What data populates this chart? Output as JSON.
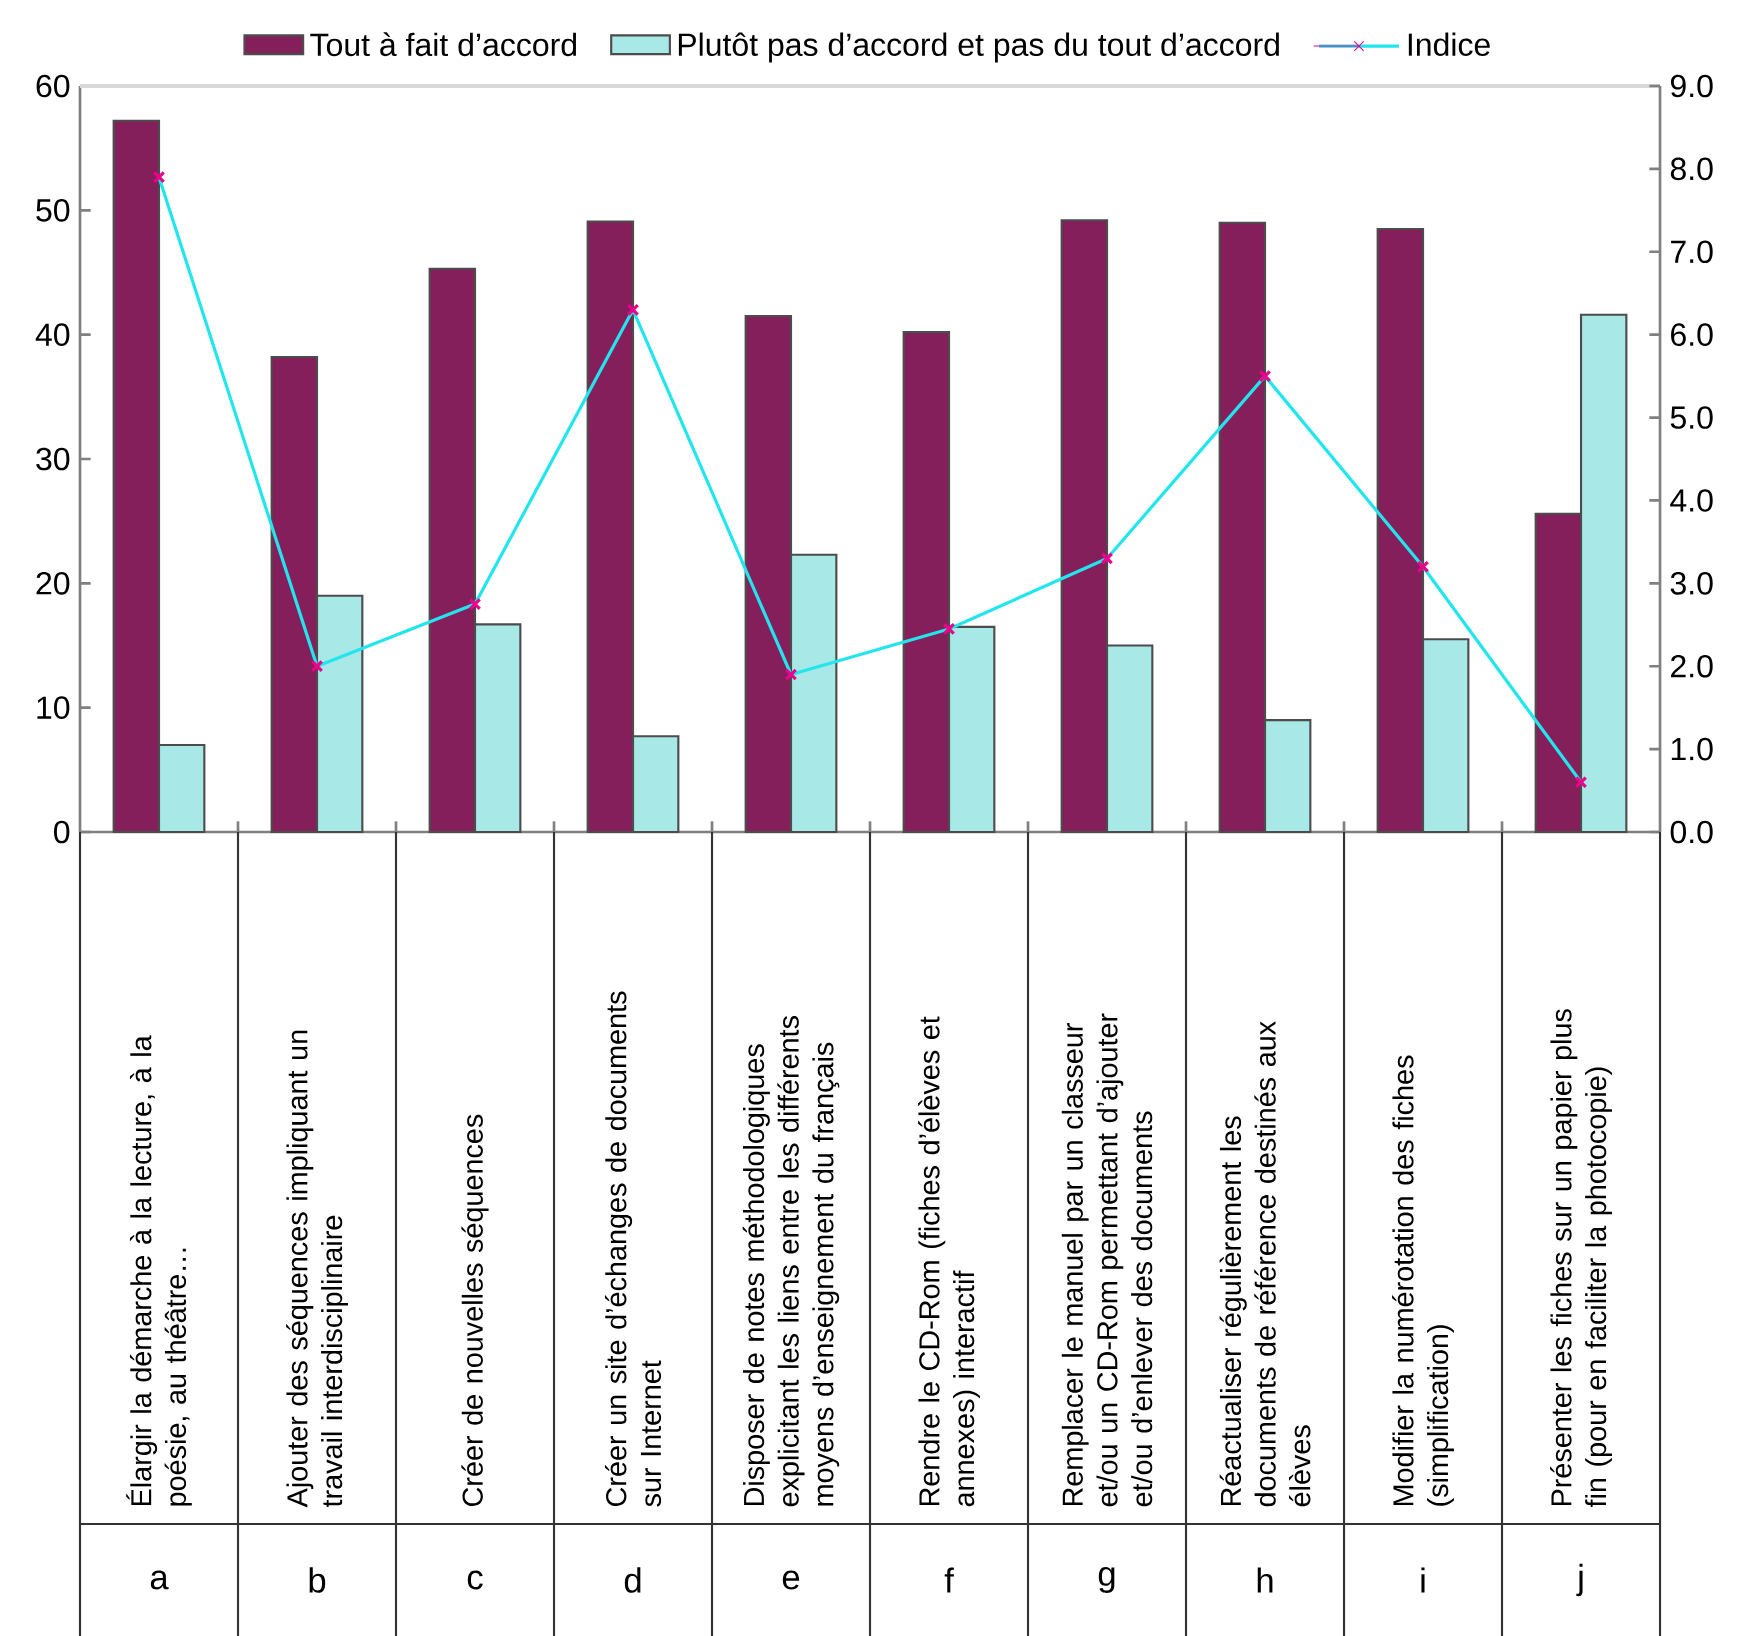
{
  "chart_data": {
    "type": "bar",
    "categories": [
      "Élargir la démarche à la lecture, à la poésie, au théâtre…",
      "Ajouter des séquences impliquant un travail interdisciplinaire",
      "Créer de nouvelles séquences",
      "Créer un site d’échanges de documents sur Internet",
      "Disposer de notes méthodologiques explicitant les liens entre les différents moyens d’enseignement du français",
      "Rendre le CD-Rom (fiches d’élèves et annexes) interactif",
      "Remplacer le manuel par un classeur et/ou un CD-Rom permettant d’ajouter et/ou d’enlever des documents",
      "Réactualiser régulièrement les documents de référence destinés aux élèves",
      "Modifier la numérotation des fiches (simplification)",
      "Présenter les fiches sur un papier plus fin (pour en faciliter la photocopie)"
    ],
    "series": [
      {
        "name": "Tout à fait d’accord",
        "color": "#841f5c",
        "values": [
          57.2,
          38.2,
          45.3,
          49.1,
          41.5,
          40.2,
          49.2,
          49.0,
          48.5,
          25.6
        ]
      },
      {
        "name": "Plutôt pas d’accord et pas du tout d’accord",
        "color": "#a8e8e6",
        "values": [
          7.0,
          19.0,
          16.7,
          7.7,
          22.3,
          16.5,
          15.0,
          9.0,
          15.5,
          41.6
        ]
      },
      {
        "name": "Indice",
        "type": "line",
        "axis": "y2",
        "color": "#22e5ee",
        "values": [
          7.9,
          2.0,
          2.75,
          6.3,
          1.9,
          2.45,
          3.3,
          5.5,
          3.2,
          0.6
        ]
      }
    ],
    "ylim": [
      0,
      60
    ],
    "yticks": [
      0,
      10,
      20,
      30,
      40,
      50,
      60
    ],
    "y2lim": [
      0,
      9
    ],
    "y2ticks": [
      {
        "value": 0,
        "label": "0.0"
      },
      {
        "value": 1,
        "label": "1.0"
      },
      {
        "value": 2,
        "label": "2.0"
      },
      {
        "value": 3,
        "label": "3.0"
      },
      {
        "value": 4,
        "label": "4.0"
      },
      {
        "value": 5,
        "label": "5.0"
      },
      {
        "value": 6,
        "label": "6.0"
      },
      {
        "value": 7,
        "label": "7.0"
      },
      {
        "value": 8,
        "label": "8.0"
      },
      {
        "value": 9,
        "label": "9.0"
      }
    ],
    "legend": "top",
    "marker": "cross",
    "line_style": "solid",
    "annotations": [
      "a",
      "b",
      "c",
      "d",
      "e",
      "f",
      "g",
      "h",
      "i",
      "j"
    ]
  }
}
